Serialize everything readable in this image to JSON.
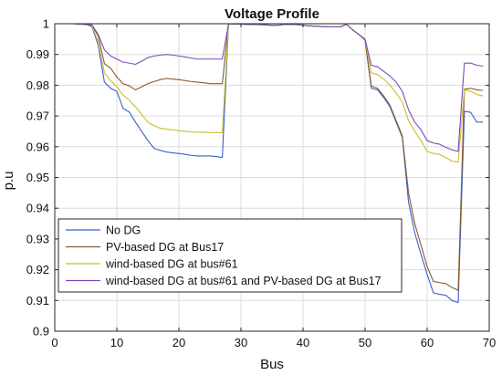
{
  "chart_data": {
    "type": "line",
    "title": "Voltage Profile",
    "xlabel": "Bus",
    "ylabel": "p.u",
    "xlim": [
      0,
      70
    ],
    "ylim": [
      0.9,
      1.0
    ],
    "xticks": [
      0,
      10,
      20,
      30,
      40,
      50,
      60,
      70
    ],
    "yticks": [
      0.9,
      0.91,
      0.92,
      0.93,
      0.94,
      0.95,
      0.96,
      0.97,
      0.98,
      0.99,
      1.0
    ],
    "ytick_labels": [
      "0.9",
      "0.91",
      "0.92",
      "0.93",
      "0.94",
      "0.95",
      "0.96",
      "0.97",
      "0.98",
      "0.99",
      "1"
    ],
    "grid": true,
    "legend_position": "lower-left",
    "x": [
      1,
      2,
      3,
      4,
      5,
      6,
      7,
      8,
      9,
      10,
      11,
      12,
      13,
      14,
      15,
      16,
      17,
      18,
      19,
      20,
      21,
      22,
      23,
      24,
      25,
      26,
      27,
      28,
      29,
      30,
      31,
      32,
      33,
      34,
      35,
      36,
      37,
      38,
      39,
      40,
      41,
      42,
      43,
      44,
      45,
      46,
      47,
      48,
      49,
      50,
      51,
      52,
      53,
      54,
      55,
      56,
      57,
      58,
      59,
      60,
      61,
      62,
      63,
      64,
      65,
      66,
      67,
      68,
      69
    ],
    "series": [
      {
        "name": "No DG",
        "color": "#3a5fcd",
        "values": [
          1.0,
          1.0,
          1.0,
          0.9999,
          0.9998,
          0.999,
          0.993,
          0.981,
          0.979,
          0.978,
          0.9725,
          0.9713,
          0.968,
          0.965,
          0.962,
          0.9595,
          0.9588,
          0.9583,
          0.958,
          0.9578,
          0.9575,
          0.9572,
          0.957,
          0.957,
          0.957,
          0.9568,
          0.9565,
          1.0,
          0.9999,
          0.9999,
          0.9998,
          0.9998,
          0.9997,
          0.9996,
          0.9995,
          0.9995,
          0.9998,
          0.9998,
          0.9997,
          0.9995,
          0.9993,
          0.9992,
          0.9991,
          0.999,
          0.999,
          0.999,
          0.9998,
          0.998,
          0.9965,
          0.9946,
          0.979,
          0.9785,
          0.976,
          0.973,
          0.968,
          0.963,
          0.942,
          0.932,
          0.925,
          0.9185,
          0.9125,
          0.912,
          0.9117,
          0.91,
          0.9093,
          0.9715,
          0.9712,
          0.968,
          0.968
        ]
      },
      {
        "name": "PV-based DG at Bus17",
        "color": "#8b5a2b",
        "values": [
          1.0,
          1.0,
          1.0,
          0.9999,
          0.9998,
          0.9994,
          0.996,
          0.987,
          0.9855,
          0.9827,
          0.9805,
          0.9798,
          0.9785,
          0.9795,
          0.9805,
          0.9812,
          0.9818,
          0.9822,
          0.982,
          0.9818,
          0.9815,
          0.9812,
          0.981,
          0.9808,
          0.9805,
          0.9805,
          0.9805,
          1.0,
          0.9999,
          0.9999,
          0.9998,
          0.9998,
          0.9997,
          0.9996,
          0.9995,
          0.9995,
          0.9998,
          0.9998,
          0.9997,
          0.9995,
          0.9993,
          0.9992,
          0.9991,
          0.999,
          0.999,
          0.999,
          0.9998,
          0.998,
          0.9965,
          0.9946,
          0.9797,
          0.979,
          0.9765,
          0.9735,
          0.9685,
          0.9635,
          0.945,
          0.935,
          0.928,
          0.921,
          0.9162,
          0.9158,
          0.9155,
          0.9142,
          0.9133,
          0.9787,
          0.979,
          0.9785,
          0.9783
        ]
      },
      {
        "name": "wind-based DG at bus#61",
        "color": "#c7be2e",
        "values": [
          1.0,
          1.0,
          1.0,
          0.9999,
          0.9998,
          0.9993,
          0.994,
          0.984,
          0.9815,
          0.9795,
          0.9768,
          0.9752,
          0.973,
          0.9705,
          0.968,
          0.9668,
          0.966,
          0.9657,
          0.9655,
          0.9652,
          0.965,
          0.9648,
          0.9647,
          0.9647,
          0.9646,
          0.9646,
          0.9646,
          1.0,
          0.9999,
          0.9999,
          0.9998,
          0.9998,
          0.9997,
          0.9996,
          0.9995,
          0.9995,
          0.9998,
          0.9998,
          0.9997,
          0.9995,
          0.9993,
          0.9992,
          0.9991,
          0.999,
          0.999,
          0.999,
          0.9998,
          0.998,
          0.9965,
          0.9948,
          0.984,
          0.9835,
          0.982,
          0.98,
          0.9775,
          0.9745,
          0.9685,
          0.965,
          0.962,
          0.9585,
          0.9578,
          0.9575,
          0.9565,
          0.9553,
          0.955,
          0.9785,
          0.978,
          0.977,
          0.9765
        ]
      },
      {
        "name": "wind-based DG at bus#61 and PV-based DG at Bus17",
        "color": "#7b4bb5",
        "values": [
          1.0,
          1.0,
          1.0,
          0.9999,
          0.9998,
          0.9996,
          0.9965,
          0.9915,
          0.9895,
          0.9885,
          0.9875,
          0.9872,
          0.9868,
          0.9878,
          0.989,
          0.9895,
          0.9898,
          0.99,
          0.9898,
          0.9895,
          0.9892,
          0.9888,
          0.9885,
          0.9885,
          0.9885,
          0.9885,
          0.9885,
          1.0,
          0.9999,
          0.9999,
          0.9998,
          0.9998,
          0.9997,
          0.9996,
          0.9995,
          0.9995,
          0.9998,
          0.9998,
          0.9997,
          0.9995,
          0.9993,
          0.9992,
          0.9991,
          0.999,
          0.999,
          0.999,
          0.9998,
          0.998,
          0.9965,
          0.995,
          0.9865,
          0.986,
          0.9845,
          0.983,
          0.981,
          0.978,
          0.972,
          0.968,
          0.9655,
          0.962,
          0.9612,
          0.9608,
          0.9598,
          0.959,
          0.9585,
          0.9872,
          0.9872,
          0.9865,
          0.9862
        ]
      }
    ]
  }
}
